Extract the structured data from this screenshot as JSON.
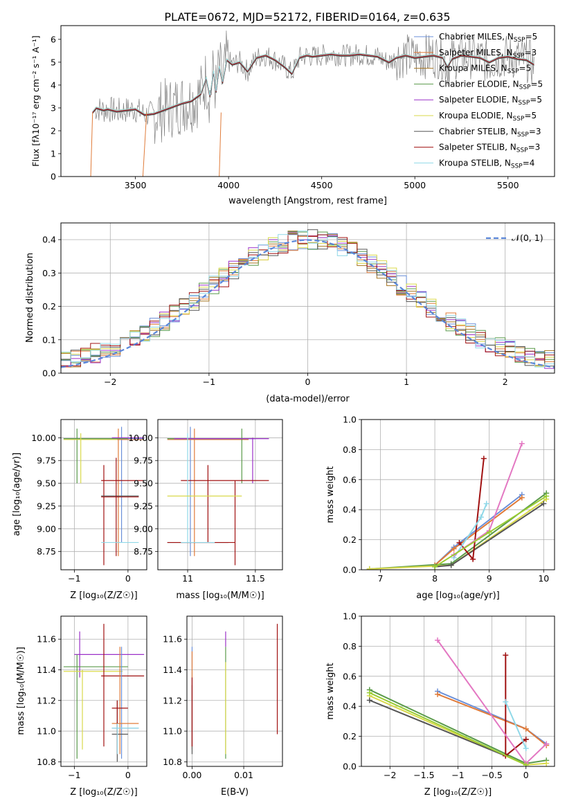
{
  "figure": {
    "title": "PLATE=0672, MJD=52172, FIBERID=0164, z=0.635"
  },
  "legend_entries": [
    {
      "label": "Chabrier MILES, N",
      "sub": "SSP",
      "post": "=5",
      "color": "#6a8fd8"
    },
    {
      "label": "Salpeter MILES, N",
      "sub": "SSP",
      "post": "=3",
      "color": "#e07b39"
    },
    {
      "label": "Kroupa MILES, N",
      "sub": "SSP",
      "post": "=5",
      "color": "#a5731f"
    },
    {
      "label": "Chabrier ELODIE, N",
      "sub": "SSP",
      "post": "=5",
      "color": "#5a9a4a"
    },
    {
      "label": "Salpeter ELODIE, N",
      "sub": "SSP",
      "post": "=5",
      "color": "#9b30c8"
    },
    {
      "label": "Kroupa ELODIE, N",
      "sub": "SSP",
      "post": "=5",
      "color": "#d9d94a"
    },
    {
      "label": "Chabrier STELIB, N",
      "sub": "SSP",
      "post": "=3",
      "color": "#555555"
    },
    {
      "label": "Salpeter STELIB, N",
      "sub": "SSP",
      "post": "=3",
      "color": "#a01010"
    },
    {
      "label": "Kroupa STELIB, N",
      "sub": "SSP",
      "post": "=4",
      "color": "#8fd8e8"
    }
  ],
  "chart_data": [
    {
      "id": "spectrum",
      "type": "line",
      "title": "PLATE=0672, MJD=52172, FIBERID=0164, z=0.635",
      "xlabel": "wavelength [Angstrom, rest frame]",
      "ylabel": "Flux [f_λ 10^-17 erg cm^-2 s^-1 A^-1]",
      "xlim": [
        3100,
        5750
      ],
      "ylim": [
        0,
        6.6
      ],
      "xticks": [
        3500,
        4000,
        4500,
        5000,
        5500
      ],
      "yticks": [
        0,
        1,
        2,
        3,
        4,
        5,
        6
      ],
      "grid": false,
      "legend": "top-right",
      "model_x": [
        3270,
        3290,
        3310,
        3330,
        3350,
        3400,
        3450,
        3500,
        3550,
        3600,
        3650,
        3700,
        3750,
        3800,
        3850,
        3880,
        3900,
        3920,
        3933,
        3950,
        3968,
        3990,
        4020,
        4060,
        4102,
        4150,
        4200,
        4250,
        4300,
        4340,
        4380,
        4420,
        4450,
        4500,
        4550,
        4600,
        4650,
        4700,
        4750,
        4800,
        4861,
        4900,
        4950,
        5000,
        5050,
        5100,
        5150,
        5175,
        5200,
        5250,
        5300,
        5350,
        5400,
        5450,
        5500,
        5550,
        5600,
        5640
      ],
      "model_y": [
        2.8,
        3.0,
        2.95,
        2.9,
        2.95,
        2.85,
        2.9,
        2.95,
        2.7,
        2.75,
        2.9,
        3.05,
        3.2,
        3.3,
        3.6,
        4.3,
        3.5,
        4.6,
        3.7,
        4.8,
        4.1,
        5.1,
        4.9,
        5.0,
        4.6,
        5.2,
        5.3,
        5.1,
        4.8,
        4.5,
        5.2,
        5.3,
        5.25,
        5.3,
        5.35,
        5.3,
        5.3,
        5.35,
        5.3,
        5.25,
        5.0,
        5.2,
        5.3,
        5.2,
        5.25,
        5.3,
        5.2,
        4.8,
        5.15,
        5.3,
        5.25,
        5.2,
        5.0,
        5.2,
        5.25,
        5.15,
        5.1,
        4.9
      ]
    },
    {
      "id": "residuals",
      "type": "line",
      "xlabel": "(data-model)/error",
      "ylabel": "Normed distribution",
      "xlim": [
        -2.5,
        2.5
      ],
      "ylim": [
        0,
        0.45
      ],
      "xticks": [
        -2,
        -1,
        0,
        1,
        2
      ],
      "yticks": [
        0.0,
        0.1,
        0.2,
        0.3,
        0.4
      ],
      "grid": true,
      "legend": "top-right",
      "legend_label": "𝒩(0, 1)",
      "reference_curve": {
        "mean": 0,
        "sigma": 1,
        "color": "#5a86d8"
      }
    },
    {
      "id": "age-Z",
      "type": "scatter",
      "xlabel": "Z [log10(Z/Z☉)]",
      "ylabel": "age  [log10(age/yr)]",
      "xlim": [
        -1.25,
        0.35
      ],
      "ylim": [
        8.55,
        10.2
      ],
      "xticks": [
        -1,
        0
      ],
      "yticks": [
        8.75,
        9.0,
        9.25,
        9.5,
        9.75,
        10.0
      ],
      "grid": true
    },
    {
      "id": "age-mass",
      "type": "scatter",
      "xlabel": "mass [log10(M/M☉)]",
      "xlim": [
        10.78,
        11.7
      ],
      "ylim": [
        8.55,
        10.2
      ],
      "xticks": [
        11.0,
        11.5
      ],
      "yticks": [
        8.75,
        9.0,
        9.25,
        9.5,
        9.75,
        10.0
      ],
      "grid": true
    },
    {
      "id": "weight-age",
      "type": "line",
      "xlabel": "age  [log10(age/yr)]",
      "ylabel": "mass weight",
      "xlim": [
        6.65,
        10.2
      ],
      "ylim": [
        0,
        1
      ],
      "xticks": [
        7,
        8,
        9,
        10
      ],
      "yticks": [
        0.0,
        0.2,
        0.4,
        0.6,
        0.8,
        1.0
      ],
      "grid": true,
      "series": [
        {
          "color": "#6a8fd8",
          "x": [
            8.0,
            8.35,
            9.6
          ],
          "y": [
            0.03,
            0.15,
            0.5
          ]
        },
        {
          "color": "#e07b39",
          "x": [
            8.0,
            8.35,
            9.6
          ],
          "y": [
            0.03,
            0.14,
            0.48
          ]
        },
        {
          "color": "#5a9a4a",
          "x": [
            6.8,
            8.3,
            10.05
          ],
          "y": [
            0.005,
            0.04,
            0.51
          ]
        },
        {
          "color": "#d9d94a",
          "x": [
            6.8,
            8.3,
            10.05
          ],
          "y": [
            0.005,
            0.03,
            0.47
          ]
        },
        {
          "color": "#555555",
          "x": [
            8.0,
            8.3,
            10.0
          ],
          "y": [
            0.02,
            0.03,
            0.44
          ]
        },
        {
          "color": "#a01010",
          "x": [
            8.45,
            8.7,
            8.9
          ],
          "y": [
            0.18,
            0.07,
            0.74
          ]
        },
        {
          "color": "#8fd8e8",
          "x": [
            8.35,
            8.85,
            8.95
          ],
          "y": [
            0.08,
            0.35,
            0.44
          ]
        },
        {
          "color": "#e377c2",
          "x": [
            8.35,
            9.0,
            9.6
          ],
          "y": [
            0.1,
            0.26,
            0.84
          ]
        },
        {
          "color": "#9acd32",
          "x": [
            8.0,
            9.0,
            10.05
          ],
          "y": [
            0.02,
            0.25,
            0.49
          ]
        }
      ]
    },
    {
      "id": "mass-Z",
      "type": "scatter",
      "xlabel": "Z [log10(Z/Z☉)]",
      "ylabel": "mass [log10(M/M☉)]",
      "xlim": [
        -1.25,
        0.35
      ],
      "ylim": [
        10.77,
        11.75
      ],
      "xticks": [
        -1,
        0
      ],
      "yticks": [
        10.8,
        11.0,
        11.2,
        11.4,
        11.6
      ],
      "grid": true
    },
    {
      "id": "mass-EBV",
      "type": "scatter",
      "xlabel": "E(B-V)",
      "xlim": [
        -0.001,
        0.0175
      ],
      "ylim": [
        10.77,
        11.75
      ],
      "xticks": [
        0.0,
        0.01
      ],
      "xticklabels": [
        "0.00",
        "0.01"
      ],
      "yticks": [
        10.8,
        11.0,
        11.2,
        11.4,
        11.6
      ],
      "grid": true
    },
    {
      "id": "weight-Z",
      "type": "line",
      "xlabel": "Z [log10(Z/Z☉)]",
      "ylabel": "mass weight",
      "xlim": [
        -2.42,
        0.42
      ],
      "ylim": [
        0,
        1
      ],
      "xticks": [
        -2.0,
        -1.5,
        -1.0,
        -0.5,
        0.0
      ],
      "yticks": [
        0.0,
        0.2,
        0.4,
        0.6,
        0.8,
        1.0
      ],
      "grid": true,
      "series": [
        {
          "color": "#6a8fd8",
          "x": [
            -1.3,
            0.0,
            0.3
          ],
          "y": [
            0.5,
            0.25,
            0.15
          ]
        },
        {
          "color": "#e07b39",
          "x": [
            -1.3,
            0.0,
            0.3
          ],
          "y": [
            0.48,
            0.25,
            0.14
          ]
        },
        {
          "color": "#5a9a4a",
          "x": [
            -2.3,
            0.0,
            0.3
          ],
          "y": [
            0.51,
            0.02,
            0.04
          ]
        },
        {
          "color": "#d9d94a",
          "x": [
            -2.3,
            0.0,
            0.3
          ],
          "y": [
            0.47,
            0.01,
            0.02
          ]
        },
        {
          "color": "#555555",
          "x": [
            -2.3,
            -0.3,
            0.0
          ],
          "y": [
            0.44,
            0.07,
            0.18
          ]
        },
        {
          "color": "#a01010",
          "x": [
            -0.3,
            -0.3,
            0.0
          ],
          "y": [
            0.74,
            0.07,
            0.18
          ]
        },
        {
          "color": "#8fd8e8",
          "x": [
            -0.3,
            0.0
          ],
          "y": [
            0.43,
            0.12
          ]
        },
        {
          "color": "#e377c2",
          "x": [
            -1.3,
            0.0,
            0.3
          ],
          "y": [
            0.84,
            0.02,
            0.15
          ]
        },
        {
          "color": "#9acd32",
          "x": [
            -2.3,
            0.0
          ],
          "y": [
            0.49,
            0.01
          ]
        }
      ]
    }
  ]
}
